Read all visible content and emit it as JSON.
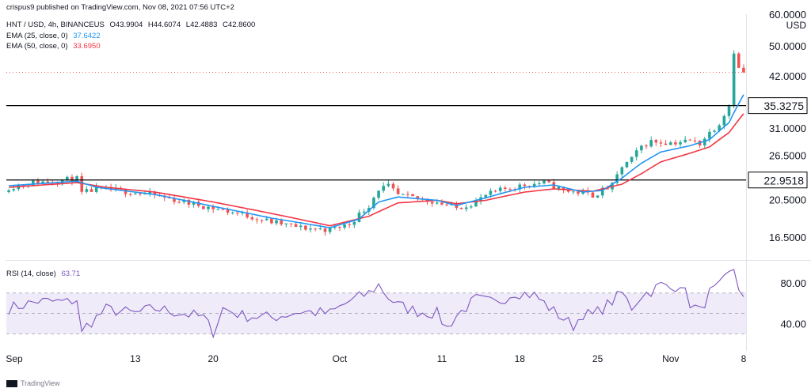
{
  "header": {
    "publisher": "crispus9 published on TradingView.com, Nov 08, 2021 07:56 UTC+2",
    "symbol": "HNT / USD, 4h, BINANCEUS",
    "ohlc": [
      {
        "k": "O",
        "v": "43.9904"
      },
      {
        "k": "H",
        "v": "44.6074"
      },
      {
        "k": "L",
        "v": "42.4883"
      },
      {
        "k": "C",
        "v": "42.8600"
      }
    ],
    "ema25_label": "EMA (25, close, 0)",
    "ema25_value": "37.6422",
    "ema50_label": "EMA (50, close, 0)",
    "ema50_value": "33.6950",
    "rsi_label": "RSI (14, close)",
    "rsi_value": "63.71"
  },
  "footer": {
    "brand": "TradingView"
  },
  "colors": {
    "up": "#26a69a",
    "down": "#ef5350",
    "ema25": "#2196f3",
    "ema50": "#f23645",
    "rsi": "#7e57c2",
    "hline": "#000000"
  },
  "chart_data": {
    "type": "candlestick",
    "currency": "USD",
    "price_axis": {
      "ticks": [
        16.5,
        20.5,
        26.5,
        31.0,
        42.0,
        50.0,
        60.0
      ],
      "tick_labels": [
        "16.5000",
        "20.5000",
        "26.5000",
        "31.0000",
        "42.0000",
        "50.0000",
        "60.0000"
      ],
      "range": [
        14.5,
        60.0
      ]
    },
    "horizontal_levels": [
      {
        "value": 35.3275,
        "label": "35.3275"
      },
      {
        "value": 22.9518,
        "label": "22.9518"
      }
    ],
    "last_price": 42.86,
    "time_axis": {
      "labels": [
        "Sep",
        "13",
        "20",
        "Oct",
        "11",
        "18",
        "25",
        "Nov",
        "8"
      ],
      "positions": [
        0,
        26,
        42,
        68,
        89,
        105,
        121,
        136,
        151
      ]
    },
    "close_keypoints": [
      [
        0,
        22
      ],
      [
        5,
        22.6
      ],
      [
        10,
        22.9
      ],
      [
        14,
        23.1
      ],
      [
        15,
        21.2
      ],
      [
        18,
        21.8
      ],
      [
        24,
        21.5
      ],
      [
        30,
        21.0
      ],
      [
        36,
        20.2
      ],
      [
        42,
        19.5
      ],
      [
        48,
        18.8
      ],
      [
        54,
        18.0
      ],
      [
        60,
        17.4
      ],
      [
        66,
        17.2
      ],
      [
        70,
        17.8
      ],
      [
        74,
        19.8
      ],
      [
        76,
        21.8
      ],
      [
        78,
        22.1
      ],
      [
        80,
        21.0
      ],
      [
        84,
        20.6
      ],
      [
        88,
        20.2
      ],
      [
        92,
        19.5
      ],
      [
        96,
        20.2
      ],
      [
        98,
        21.0
      ],
      [
        102,
        21.8
      ],
      [
        106,
        22.3
      ],
      [
        110,
        22.6
      ],
      [
        114,
        21.6
      ],
      [
        118,
        21.3
      ],
      [
        120,
        21.0
      ],
      [
        124,
        22.2
      ],
      [
        126,
        24.8
      ],
      [
        128,
        25.9
      ],
      [
        130,
        27.9
      ],
      [
        132,
        28.7
      ],
      [
        136,
        28.5
      ],
      [
        140,
        28.8
      ],
      [
        142,
        28.4
      ],
      [
        144,
        30.2
      ],
      [
        146,
        31.9
      ],
      [
        148,
        35.5
      ],
      [
        148.5,
        40.0
      ],
      [
        149,
        48.5
      ],
      [
        149.5,
        46.5
      ],
      [
        150,
        43.7
      ],
      [
        151,
        42.86
      ]
    ],
    "ema25_keypoints": [
      [
        0,
        22.2
      ],
      [
        14,
        22.8
      ],
      [
        18,
        22.0
      ],
      [
        30,
        21.1
      ],
      [
        42,
        19.7
      ],
      [
        54,
        18.4
      ],
      [
        66,
        17.4
      ],
      [
        72,
        18.3
      ],
      [
        76,
        20.2
      ],
      [
        80,
        20.8
      ],
      [
        88,
        20.4
      ],
      [
        92,
        19.8
      ],
      [
        98,
        20.7
      ],
      [
        106,
        22.0
      ],
      [
        112,
        22.3
      ],
      [
        118,
        21.4
      ],
      [
        122,
        21.6
      ],
      [
        126,
        23.2
      ],
      [
        130,
        25.3
      ],
      [
        134,
        27.0
      ],
      [
        140,
        28.0
      ],
      [
        144,
        29.0
      ],
      [
        148,
        32.0
      ],
      [
        151,
        37.6422
      ]
    ],
    "ema50_keypoints": [
      [
        0,
        22.0
      ],
      [
        14,
        22.6
      ],
      [
        20,
        22.0
      ],
      [
        30,
        21.4
      ],
      [
        42,
        20.2
      ],
      [
        54,
        18.9
      ],
      [
        66,
        17.6
      ],
      [
        74,
        18.6
      ],
      [
        80,
        20.1
      ],
      [
        88,
        20.4
      ],
      [
        92,
        20.0
      ],
      [
        98,
        20.4
      ],
      [
        106,
        21.4
      ],
      [
        112,
        21.8
      ],
      [
        120,
        21.5
      ],
      [
        126,
        22.4
      ],
      [
        130,
        23.8
      ],
      [
        134,
        25.5
      ],
      [
        140,
        26.8
      ],
      [
        144,
        27.8
      ],
      [
        148,
        30.2
      ],
      [
        151,
        33.695
      ]
    ],
    "rsi_keypoints": [
      [
        0,
        55
      ],
      [
        6,
        62
      ],
      [
        12,
        61
      ],
      [
        14,
        64
      ],
      [
        15,
        30
      ],
      [
        16,
        38
      ],
      [
        20,
        54
      ],
      [
        26,
        50
      ],
      [
        30,
        55
      ],
      [
        36,
        50
      ],
      [
        40,
        46
      ],
      [
        42,
        32
      ],
      [
        44,
        55
      ],
      [
        48,
        48
      ],
      [
        54,
        46
      ],
      [
        60,
        52
      ],
      [
        66,
        50
      ],
      [
        70,
        62
      ],
      [
        74,
        70
      ],
      [
        76,
        78
      ],
      [
        78,
        66
      ],
      [
        80,
        58
      ],
      [
        84,
        52
      ],
      [
        88,
        50
      ],
      [
        90,
        36
      ],
      [
        92,
        48
      ],
      [
        96,
        64
      ],
      [
        100,
        60
      ],
      [
        104,
        71
      ],
      [
        108,
        68
      ],
      [
        112,
        52
      ],
      [
        116,
        38
      ],
      [
        118,
        50
      ],
      [
        120,
        48
      ],
      [
        124,
        62
      ],
      [
        126,
        70
      ],
      [
        128,
        56
      ],
      [
        130,
        68
      ],
      [
        132,
        72
      ],
      [
        134,
        78
      ],
      [
        136,
        74
      ],
      [
        138,
        80
      ],
      [
        140,
        60
      ],
      [
        142,
        52
      ],
      [
        144,
        70
      ],
      [
        146,
        76
      ],
      [
        148,
        88
      ],
      [
        149,
        94
      ],
      [
        150,
        76
      ],
      [
        151,
        63.71
      ]
    ],
    "rsi_axis": {
      "ticks": [
        40,
        80
      ],
      "tick_labels": [
        "40.00",
        "80.00"
      ],
      "upper_band": 70,
      "middle_band": 50,
      "lower_band": 30,
      "range": [
        18,
        100
      ]
    },
    "annotations": []
  }
}
